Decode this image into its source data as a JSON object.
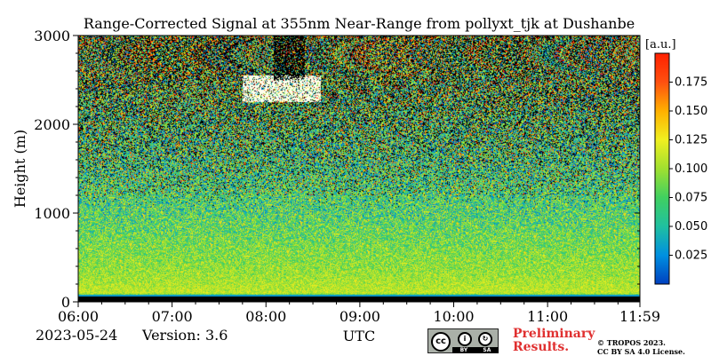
{
  "chart_data": {
    "type": "heatmap",
    "title": "Range-Corrected Signal at 355nm Near-Range from pollyxt_tjk at Dushanbe",
    "xlabel": "UTC",
    "ylabel": "Height (m)",
    "x_ticks": [
      "06:00",
      "07:00",
      "08:00",
      "09:00",
      "10:00",
      "11:00",
      "11:59"
    ],
    "x_range": [
      "06:00",
      "11:59"
    ],
    "y_ticks": [
      0,
      1000,
      2000,
      3000
    ],
    "ylim": [
      0,
      3000
    ],
    "colorbar": {
      "unit": "[a.u.]",
      "range": [
        0,
        0.2
      ],
      "ticks": [
        "0.025",
        "0.050",
        "0.075",
        "0.100",
        "0.125",
        "0.150",
        "0.175"
      ],
      "colormap": [
        "#0040c0",
        "#0090e0",
        "#20c0a0",
        "#40d060",
        "#a0e030",
        "#f0f020",
        "#ffb000",
        "#ff5010",
        "#ff2000"
      ]
    },
    "features": [
      {
        "kind": "signal_profile",
        "note": "",
        "heights_m": [
          0,
          100,
          300,
          600,
          1000,
          1500,
          2000,
          2500,
          3000
        ],
        "mean_signal": [
          0.0,
          0.11,
          0.1,
          0.09,
          0.075,
          0.06,
          0.05,
          0.045,
          0.04
        ]
      },
      {
        "kind": "cloud",
        "time_start": "07:45",
        "time_end": "08:35",
        "height_bottom_m": 2250,
        "height_top_m": 2550,
        "signal": 0.1
      }
    ]
  },
  "footer": {
    "date": "2023-05-24",
    "version": "Version: 3.6",
    "xlabel": "UTC",
    "preliminary_line1": "Preliminary",
    "preliminary_line2": "Results.",
    "copyright_line1": "© TROPOS 2023.",
    "copyright_line2": "CC BY SA 4.0 License.",
    "license_badge": {
      "cc": "cc",
      "by": "BY",
      "sa": "SA"
    }
  }
}
